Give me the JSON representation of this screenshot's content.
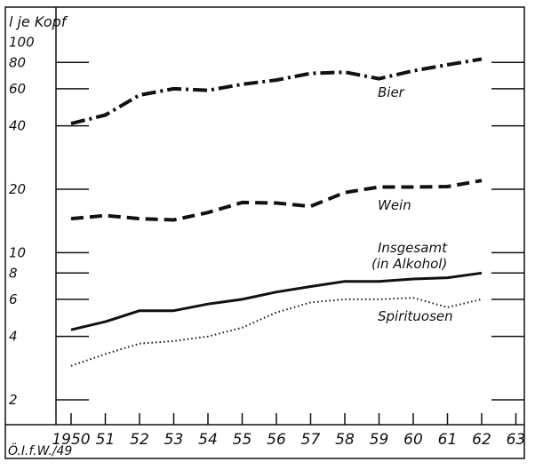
{
  "chart_data": {
    "type": "line",
    "title": "",
    "ylabel": "l je Kopf",
    "xlabel": "",
    "yscale": "log",
    "ylim": [
      1.5,
      100
    ],
    "xlim": [
      1949.8,
      1963.3
    ],
    "grid": false,
    "y_ticks": [
      {
        "value": 100,
        "label": "100",
        "mark": false
      },
      {
        "value": 80,
        "label": "80",
        "mark": true
      },
      {
        "value": 60,
        "label": "60",
        "mark": true
      },
      {
        "value": 40,
        "label": "40",
        "mark": true
      },
      {
        "value": 20,
        "label": "20",
        "mark": true
      },
      {
        "value": 10,
        "label": "10",
        "mark": true
      },
      {
        "value": 8,
        "label": "8",
        "mark": true
      },
      {
        "value": 6,
        "label": "6",
        "mark": true
      },
      {
        "value": 4,
        "label": "4",
        "mark": true
      },
      {
        "value": 2,
        "label": "2",
        "mark": true
      }
    ],
    "x": [
      1950,
      1951,
      1952,
      1953,
      1954,
      1955,
      1956,
      1957,
      1958,
      1959,
      1960,
      1961,
      1962
    ],
    "x_ticks": [
      {
        "value": 1950,
        "label": "1950"
      },
      {
        "value": 1951,
        "label": "51"
      },
      {
        "value": 1952,
        "label": "52"
      },
      {
        "value": 1953,
        "label": "53"
      },
      {
        "value": 1954,
        "label": "54"
      },
      {
        "value": 1955,
        "label": "55"
      },
      {
        "value": 1956,
        "label": "56"
      },
      {
        "value": 1957,
        "label": "57"
      },
      {
        "value": 1958,
        "label": "58"
      },
      {
        "value": 1959,
        "label": "59"
      },
      {
        "value": 1960,
        "label": "60"
      },
      {
        "value": 1961,
        "label": "61"
      },
      {
        "value": 1962,
        "label": "62"
      },
      {
        "value": 1963,
        "label": "63"
      }
    ],
    "series": [
      {
        "name": "Bier",
        "style": "dash-dot",
        "values": [
          41,
          45,
          56,
          60,
          59,
          63,
          66,
          71,
          72,
          67,
          73,
          78,
          83
        ]
      },
      {
        "name": "Wein",
        "style": "dashed",
        "values": [
          14.5,
          15,
          14.5,
          14.3,
          15.5,
          17.3,
          17.2,
          16.6,
          19.3,
          20.5,
          20.5,
          20.6,
          22
        ]
      },
      {
        "name": "Insgesamt (in Alkohol)",
        "style": "solid",
        "values": [
          4.3,
          4.7,
          5.3,
          5.3,
          5.7,
          6.0,
          6.5,
          6.9,
          7.3,
          7.3,
          7.5,
          7.6,
          8.0
        ]
      },
      {
        "name": "Spirituosen",
        "style": "dotted",
        "values": [
          2.9,
          3.3,
          3.7,
          3.8,
          4.0,
          4.4,
          5.2,
          5.8,
          6.0,
          6.0,
          6.1,
          5.5,
          6.0
        ]
      }
    ],
    "series_labels": [
      "Bier",
      "Wein",
      "Insgesamt",
      "(in Alkohol)",
      "Spirituosen"
    ]
  },
  "source_note": "Ö.I.f.W./49",
  "colors": {
    "ink": "#111111",
    "background": "#ffffff"
  }
}
